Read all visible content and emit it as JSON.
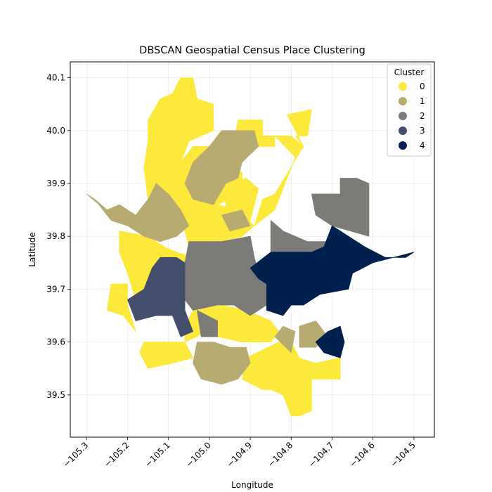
{
  "chart_data": {
    "type": "map",
    "title": "DBSCAN Geospatial Census Place Clustering",
    "xlabel": "Longitude",
    "ylabel": "Latitude",
    "xlim": [
      -105.34,
      -104.45
    ],
    "ylim": [
      39.42,
      40.13
    ],
    "xticks": [
      -105.3,
      -105.2,
      -105.1,
      -105.0,
      -104.9,
      -104.8,
      -104.7,
      -104.6,
      -104.5
    ],
    "xtick_labels": [
      "−105.3",
      "−105.2",
      "−105.1",
      "−105.0",
      "−104.9",
      "−104.8",
      "−104.7",
      "−104.6",
      "−104.5"
    ],
    "yticks": [
      39.5,
      39.6,
      39.7,
      39.8,
      39.9,
      40.0,
      40.1
    ],
    "ytick_labels": [
      "39.5",
      "39.6",
      "39.7",
      "39.8",
      "39.9",
      "40.0",
      "40.1"
    ],
    "grid": true,
    "legend": {
      "title": "Cluster",
      "placement": "top-right",
      "entries": [
        {
          "label": "0",
          "color": "#fde93b"
        },
        {
          "label": "1",
          "color": "#b8ab72"
        },
        {
          "label": "2",
          "color": "#7c7b78"
        },
        {
          "label": "3",
          "color": "#434e6c"
        },
        {
          "label": "4",
          "color": "#00214e"
        }
      ]
    },
    "clusters": [
      {
        "cluster": "0",
        "color": "#fde93b",
        "regions": [
          [
            [
              -105.15,
              39.98
            ],
            [
              -105.15,
              40.02
            ],
            [
              -105.12,
              40.06
            ],
            [
              -105.09,
              40.07
            ],
            [
              -105.07,
              40.1
            ],
            [
              -105.04,
              40.1
            ],
            [
              -105.03,
              40.06
            ],
            [
              -104.99,
              40.05
            ],
            [
              -104.99,
              40.0
            ],
            [
              -105.05,
              39.98
            ],
            [
              -105.07,
              39.94
            ],
            [
              -105.06,
              39.9
            ],
            [
              -105.03,
              39.87
            ],
            [
              -104.98,
              39.86
            ],
            [
              -104.96,
              39.83
            ],
            [
              -104.99,
              39.81
            ],
            [
              -105.05,
              39.8
            ],
            [
              -105.08,
              39.83
            ],
            [
              -105.12,
              39.85
            ],
            [
              -105.15,
              39.87
            ],
            [
              -105.16,
              39.93
            ]
          ],
          [
            [
              -105.04,
              39.97
            ],
            [
              -104.97,
              39.97
            ],
            [
              -104.96,
              39.94
            ],
            [
              -104.92,
              39.92
            ],
            [
              -104.92,
              39.88
            ],
            [
              -104.98,
              39.86
            ],
            [
              -105.03,
              39.87
            ],
            [
              -105.06,
              39.9
            ],
            [
              -105.07,
              39.94
            ]
          ],
          [
            [
              -104.96,
              39.83
            ],
            [
              -104.96,
              39.9
            ],
            [
              -104.91,
              39.91
            ],
            [
              -104.88,
              39.89
            ],
            [
              -104.9,
              39.83
            ]
          ],
          [
            [
              -105.0,
              39.76
            ],
            [
              -104.97,
              39.79
            ],
            [
              -104.92,
              39.8
            ],
            [
              -104.89,
              39.82
            ],
            [
              -104.93,
              39.85
            ],
            [
              -104.98,
              39.86
            ],
            [
              -105.04,
              39.84
            ],
            [
              -105.06,
              39.81
            ],
            [
              -105.05,
              39.78
            ]
          ],
          [
            [
              -104.89,
              39.82
            ],
            [
              -104.84,
              39.85
            ],
            [
              -104.79,
              39.95
            ],
            [
              -104.84,
              39.99
            ],
            [
              -104.8,
              39.99
            ],
            [
              -104.77,
              39.97
            ],
            [
              -104.84,
              39.88
            ],
            [
              -104.87,
              39.87
            ]
          ],
          [
            [
              -104.94,
              39.97
            ],
            [
              -104.93,
              40.02
            ],
            [
              -104.87,
              40.02
            ],
            [
              -104.87,
              39.99
            ],
            [
              -104.84,
              39.99
            ],
            [
              -104.84,
              39.97
            ]
          ],
          [
            [
              -104.81,
              40.03
            ],
            [
              -104.75,
              40.04
            ],
            [
              -104.76,
              39.99
            ],
            [
              -104.79,
              39.99
            ],
            [
              -104.77,
              39.97
            ]
          ],
          [
            [
              -105.22,
              39.71
            ],
            [
              -105.2,
              39.71
            ],
            [
              -105.2,
              39.67
            ],
            [
              -105.18,
              39.62
            ],
            [
              -105.21,
              39.65
            ],
            [
              -105.25,
              39.66
            ],
            [
              -105.24,
              39.71
            ]
          ],
          [
            [
              -105.22,
              39.81
            ],
            [
              -105.15,
              39.8
            ],
            [
              -105.11,
              39.78
            ],
            [
              -105.08,
              39.77
            ],
            [
              -105.04,
              39.76
            ],
            [
              -105.04,
              39.73
            ],
            [
              -105.08,
              39.72
            ],
            [
              -105.13,
              39.71
            ],
            [
              -105.14,
              39.68
            ],
            [
              -105.18,
              39.68
            ],
            [
              -105.2,
              39.73
            ],
            [
              -105.22,
              39.77
            ]
          ],
          [
            [
              -105.11,
              39.6
            ],
            [
              -105.06,
              39.6
            ],
            [
              -105.04,
              39.57
            ],
            [
              -105.09,
              39.56
            ],
            [
              -105.15,
              39.55
            ],
            [
              -105.17,
              39.58
            ],
            [
              -105.16,
              39.6
            ]
          ],
          [
            [
              -105.04,
              39.66
            ],
            [
              -104.97,
              39.67
            ],
            [
              -104.91,
              39.66
            ],
            [
              -104.85,
              39.64
            ],
            [
              -104.83,
              39.62
            ],
            [
              -104.85,
              39.6
            ],
            [
              -104.88,
              39.6
            ],
            [
              -104.92,
              39.6
            ],
            [
              -104.98,
              39.61
            ],
            [
              -104.98,
              39.64
            ],
            [
              -105.03,
              39.61
            ],
            [
              -105.06,
              39.6
            ],
            [
              -105.06,
              39.63
            ]
          ],
          [
            [
              -104.91,
              39.57
            ],
            [
              -104.92,
              39.53
            ],
            [
              -104.87,
              39.51
            ],
            [
              -104.85,
              39.51
            ],
            [
              -104.82,
              39.5
            ],
            [
              -104.8,
              39.46
            ],
            [
              -104.78,
              39.46
            ],
            [
              -104.75,
              39.47
            ],
            [
              -104.75,
              39.53
            ],
            [
              -104.72,
              39.53
            ],
            [
              -104.74,
              39.56
            ],
            [
              -104.78,
              39.57
            ],
            [
              -104.8,
              39.6
            ],
            [
              -104.83,
              39.6
            ]
          ],
          [
            [
              -104.68,
              39.57
            ],
            [
              -104.68,
              39.53
            ],
            [
              -104.72,
              39.53
            ],
            [
              -104.74,
              39.56
            ]
          ]
        ]
      },
      {
        "cluster": "1",
        "color": "#b8ab72",
        "regions": [
          [
            [
              -105.18,
              39.84
            ],
            [
              -105.22,
              39.86
            ],
            [
              -105.25,
              39.85
            ],
            [
              -105.28,
              39.87
            ],
            [
              -105.3,
              39.88
            ],
            [
              -105.27,
              39.86
            ],
            [
              -105.24,
              39.83
            ],
            [
              -105.2,
              39.82
            ],
            [
              -105.16,
              39.8
            ],
            [
              -105.12,
              39.79
            ],
            [
              -105.08,
              39.8
            ],
            [
              -105.05,
              39.82
            ],
            [
              -105.07,
              39.85
            ],
            [
              -105.1,
              39.88
            ],
            [
              -105.13,
              39.9
            ],
            [
              -105.15,
              39.87
            ]
          ],
          [
            [
              -105.06,
              39.9
            ],
            [
              -105.04,
              39.94
            ],
            [
              -105.0,
              39.97
            ],
            [
              -104.97,
              40.0
            ],
            [
              -104.89,
              40.0
            ],
            [
              -104.88,
              39.97
            ],
            [
              -104.92,
              39.94
            ],
            [
              -104.93,
              39.91
            ],
            [
              -104.96,
              39.9
            ],
            [
              -104.99,
              39.86
            ],
            [
              -105.04,
              39.87
            ]
          ],
          [
            [
              -104.97,
              39.84
            ],
            [
              -104.95,
              39.81
            ],
            [
              -104.9,
              39.82
            ],
            [
              -104.92,
              39.85
            ]
          ],
          [
            [
              -105.03,
              39.6
            ],
            [
              -104.99,
              39.6
            ],
            [
              -104.95,
              39.59
            ],
            [
              -104.91,
              39.59
            ],
            [
              -104.9,
              39.56
            ],
            [
              -104.93,
              39.53
            ],
            [
              -104.97,
              39.52
            ],
            [
              -105.02,
              39.53
            ],
            [
              -105.04,
              39.56
            ]
          ],
          [
            [
              -104.84,
              39.61
            ],
            [
              -104.8,
              39.58
            ],
            [
              -104.79,
              39.62
            ],
            [
              -104.82,
              39.63
            ]
          ],
          [
            [
              -104.74,
              39.64
            ],
            [
              -104.78,
              39.63
            ],
            [
              -104.78,
              39.59
            ],
            [
              -104.74,
              39.59
            ],
            [
              -104.71,
              39.61
            ]
          ]
        ]
      },
      {
        "cluster": "2",
        "color": "#7c7b78",
        "regions": [
          [
            [
              -105.05,
              39.79
            ],
            [
              -104.97,
              39.79
            ],
            [
              -104.9,
              39.8
            ],
            [
              -104.89,
              39.76
            ],
            [
              -104.88,
              39.73
            ],
            [
              -104.86,
              39.72
            ],
            [
              -104.86,
              39.67
            ],
            [
              -104.9,
              39.65
            ],
            [
              -104.94,
              39.67
            ],
            [
              -104.98,
              39.67
            ],
            [
              -105.04,
              39.66
            ],
            [
              -105.06,
              39.68
            ],
            [
              -105.06,
              39.75
            ]
          ],
          [
            [
              -104.85,
              39.8
            ],
            [
              -104.85,
              39.83
            ],
            [
              -104.82,
              39.81
            ],
            [
              -104.76,
              39.79
            ],
            [
              -104.7,
              39.79
            ],
            [
              -104.7,
              39.76
            ],
            [
              -104.78,
              39.76
            ],
            [
              -104.82,
              39.73
            ],
            [
              -104.85,
              39.73
            ]
          ],
          [
            [
              -104.68,
              39.88
            ],
            [
              -104.68,
              39.91
            ],
            [
              -104.64,
              39.91
            ],
            [
              -104.61,
              39.9
            ],
            [
              -104.61,
              39.8
            ],
            [
              -104.7,
              39.82
            ],
            [
              -104.74,
              39.84
            ],
            [
              -104.75,
              39.88
            ]
          ],
          [
            [
              -105.03,
              39.66
            ],
            [
              -105.02,
              39.61
            ],
            [
              -104.98,
              39.61
            ],
            [
              -104.98,
              39.64
            ]
          ]
        ]
      },
      {
        "cluster": "3",
        "color": "#434e6c",
        "regions": [
          [
            [
              -105.06,
              39.75
            ],
            [
              -105.06,
              39.66
            ],
            [
              -105.04,
              39.62
            ],
            [
              -105.07,
              39.61
            ],
            [
              -105.09,
              39.65
            ],
            [
              -105.13,
              39.65
            ],
            [
              -105.18,
              39.64
            ],
            [
              -105.2,
              39.68
            ],
            [
              -105.16,
              39.7
            ],
            [
              -105.14,
              39.74
            ],
            [
              -105.12,
              39.76
            ],
            [
              -105.08,
              39.76
            ]
          ]
        ]
      },
      {
        "cluster": "4",
        "color": "#00214e",
        "regions": [
          [
            [
              -104.9,
              39.74
            ],
            [
              -104.85,
              39.77
            ],
            [
              -104.8,
              39.77
            ],
            [
              -104.75,
              39.77
            ],
            [
              -104.72,
              39.78
            ],
            [
              -104.7,
              39.82
            ],
            [
              -104.66,
              39.8
            ],
            [
              -104.62,
              39.78
            ],
            [
              -104.57,
              39.76
            ],
            [
              -104.52,
              39.76
            ],
            [
              -104.5,
              39.77
            ],
            [
              -104.6,
              39.75
            ],
            [
              -104.65,
              39.73
            ],
            [
              -104.66,
              39.7
            ],
            [
              -104.73,
              39.69
            ],
            [
              -104.77,
              39.67
            ],
            [
              -104.8,
              39.67
            ],
            [
              -104.82,
              39.65
            ],
            [
              -104.86,
              39.66
            ],
            [
              -104.86,
              39.71
            ],
            [
              -104.88,
              39.72
            ]
          ],
          [
            [
              -104.74,
              39.6
            ],
            [
              -104.71,
              39.62
            ],
            [
              -104.68,
              39.63
            ],
            [
              -104.67,
              39.6
            ],
            [
              -104.68,
              39.57
            ],
            [
              -104.72,
              39.58
            ]
          ]
        ]
      }
    ]
  }
}
